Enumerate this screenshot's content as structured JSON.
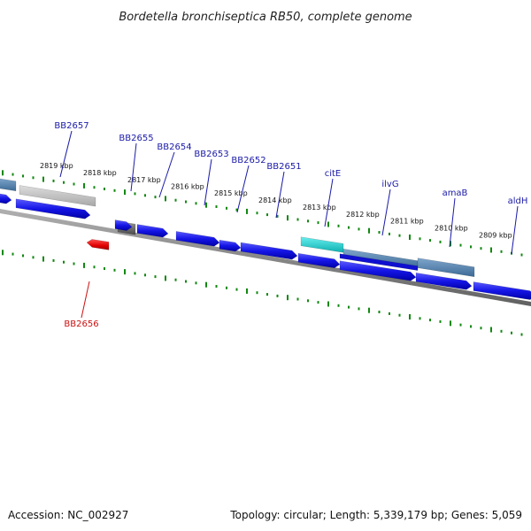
{
  "title": "Bordetella bronchiseptica RB50, complete genome",
  "footer": {
    "accession": "Accession: NC_002927",
    "summary": "Topology: circular; Length: 5,339,179 bp; Genes: 5,059"
  },
  "colors": {
    "forward_gene": "#1010e0",
    "reverse_gene": "#e00000",
    "tick": "#118811",
    "backbone": "#808080",
    "gene_label_forward": "#1a1aa8",
    "gene_label_reverse": "#cc1111",
    "feature_steel": "#4a7fae",
    "feature_gray": "#b8b8b8",
    "feature_dark": "#666666",
    "feature_cyan": "#22cccc"
  },
  "position_ticks": [
    "2819 kbp",
    "2818 kbp",
    "2817 kbp",
    "2816 kbp",
    "2815 kbp",
    "2814 kbp",
    "2813 kbp",
    "2812 kbp",
    "2811 kbp",
    "2810 kbp",
    "2809 kbp"
  ],
  "gene_labels": [
    {
      "text": "BB2657",
      "strand": "forward"
    },
    {
      "text": "BB2655",
      "strand": "forward"
    },
    {
      "text": "BB2654",
      "strand": "forward"
    },
    {
      "text": "BB2653",
      "strand": "forward"
    },
    {
      "text": "BB2652",
      "strand": "forward"
    },
    {
      "text": "BB2651",
      "strand": "forward"
    },
    {
      "text": "citE",
      "strand": "forward"
    },
    {
      "text": "ilvG",
      "strand": "forward"
    },
    {
      "text": "amaB",
      "strand": "forward"
    },
    {
      "text": "aldH",
      "strand": "forward"
    },
    {
      "text": "BB2656",
      "strand": "reverse"
    }
  ]
}
